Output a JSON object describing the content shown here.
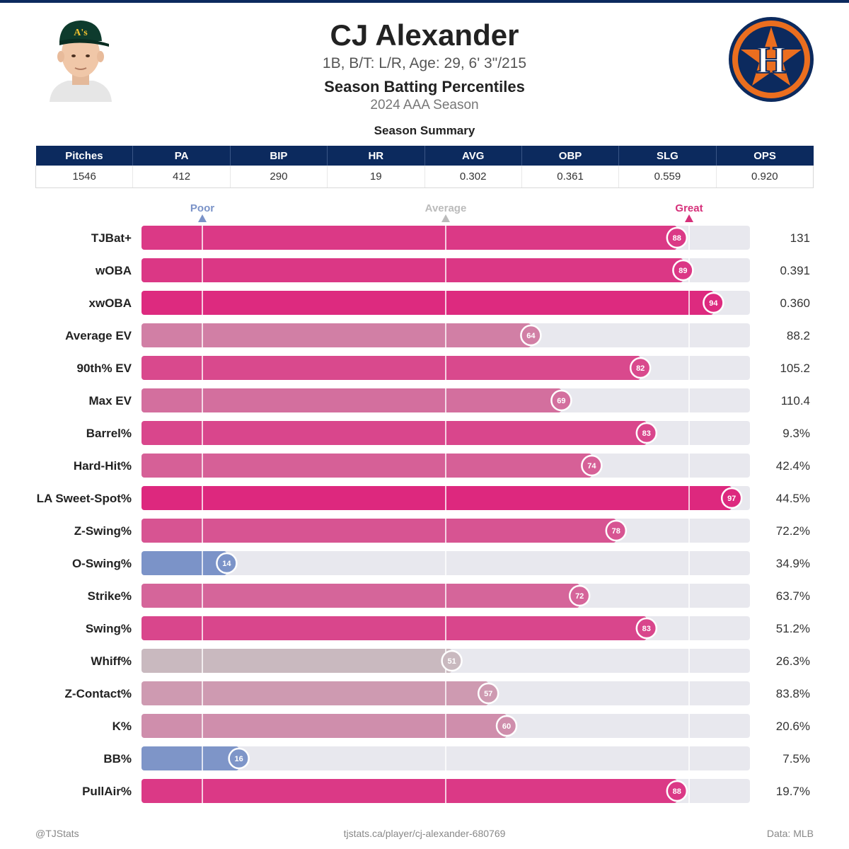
{
  "header": {
    "name": "CJ Alexander",
    "bio": "1B, B/T: L/R, Age: 29, 6' 3\"/215",
    "title": "Season Batting Percentiles",
    "season": "2024 AAA Season",
    "summary_title": "Season Summary",
    "cap_logo_text": "A's",
    "team_logo_text": "H"
  },
  "summary": {
    "columns": [
      "Pitches",
      "PA",
      "BIP",
      "HR",
      "AVG",
      "OBP",
      "SLG",
      "OPS"
    ],
    "values": [
      "1546",
      "412",
      "290",
      "19",
      "0.302",
      "0.361",
      "0.559",
      "0.920"
    ]
  },
  "chart_data": {
    "type": "bar",
    "orientation": "horizontal",
    "title": "Season Batting Percentiles",
    "categories": [
      "TJBat+",
      "wOBA",
      "xwOBA",
      "Average EV",
      "90th% EV",
      "Max EV",
      "Barrel%",
      "Hard-Hit%",
      "LA Sweet-Spot%",
      "Z-Swing%",
      "O-Swing%",
      "Strike%",
      "Swing%",
      "Whiff%",
      "Z-Contact%",
      "K%",
      "BB%",
      "PullAir%"
    ],
    "percentiles": [
      88,
      89,
      94,
      64,
      82,
      69,
      83,
      74,
      97,
      78,
      14,
      72,
      83,
      51,
      57,
      60,
      16,
      88
    ],
    "stat_values": [
      "131",
      "0.391",
      "0.360",
      "88.2",
      "105.2",
      "110.4",
      "9.3%",
      "42.4%",
      "44.5%",
      "72.2%",
      "34.9%",
      "63.7%",
      "51.2%",
      "26.3%",
      "83.8%",
      "20.6%",
      "7.5%",
      "19.7%"
    ],
    "xlim": [
      0,
      100
    ],
    "reference_lines": [
      {
        "label": "Poor",
        "value": 10,
        "color": "#7b93c8"
      },
      {
        "label": "Average",
        "value": 50,
        "color": "#bbbbbb"
      },
      {
        "label": "Great",
        "value": 90,
        "color": "#d6307a"
      }
    ],
    "colors": {
      "great": "#dd287e",
      "average": "#c8c4c4",
      "poor": "#7b93c8",
      "track": "#e8e8ee"
    }
  },
  "footer": {
    "left": "@TJStats",
    "center": "tjstats.ca/player/cj-alexander-680769",
    "right": "Data: MLB"
  }
}
